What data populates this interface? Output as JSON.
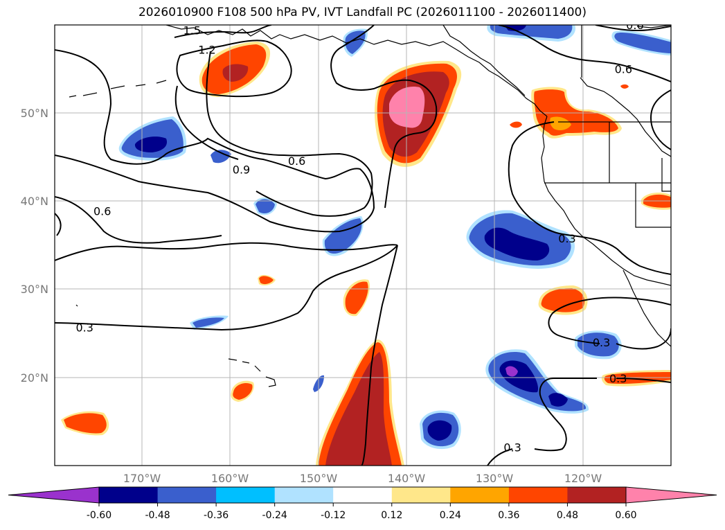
{
  "title": "2026010900 F108 500 hPa PV, IVT Landfall PC (2026011100 - 2026011400)",
  "map": {
    "lat_range": [
      10,
      60
    ],
    "lon_range": [
      -180,
      -110
    ],
    "lat_labels": [
      "50°N",
      "40°N",
      "30°N",
      "20°N"
    ],
    "lon_labels": [
      "170°W",
      "160°W",
      "150°W",
      "140°W",
      "130°W",
      "120°W"
    ],
    "contour_labels": [
      {
        "text": "1.5",
        "lon": -164.4,
        "lat": 59.4
      },
      {
        "text": "1.2",
        "lon": -162.7,
        "lat": 57.2
      },
      {
        "text": "0.6",
        "lon": -152.5,
        "lat": 44.6
      },
      {
        "text": "0.9",
        "lon": -158.8,
        "lat": 43.6
      },
      {
        "text": "0.6",
        "lon": -174.6,
        "lat": 38.9
      },
      {
        "text": "0.3",
        "lon": -176.6,
        "lat": 25.7
      },
      {
        "text": "0.6",
        "lon": -114.1,
        "lat": 60.0
      },
      {
        "text": "0.6",
        "lon": -115.4,
        "lat": 55.0
      },
      {
        "text": "0.3",
        "lon": -121.8,
        "lat": 35.8
      },
      {
        "text": "0.3",
        "lon": -117.9,
        "lat": 24.0
      },
      {
        "text": "0.3",
        "lon": -116.0,
        "lat": 19.9
      },
      {
        "text": "0.3",
        "lon": -128.0,
        "lat": 12.1
      }
    ]
  },
  "colorbar": {
    "ticks": [
      "-0.60",
      "-0.48",
      "-0.36",
      "-0.24",
      "-0.12",
      "0.12",
      "0.24",
      "0.36",
      "0.48",
      "0.60"
    ],
    "colors": [
      "#9a32cd",
      "#00008b",
      "#3a5fcd",
      "#00bfff",
      "#b0e2ff",
      "#ffffff",
      "#ffe78a",
      "#ffa500",
      "#ff4500",
      "#b22222",
      "#ff82ab"
    ]
  },
  "colors": {
    "coast": "#000000",
    "grid": "#b4b4b4",
    "contour": "#000000"
  }
}
